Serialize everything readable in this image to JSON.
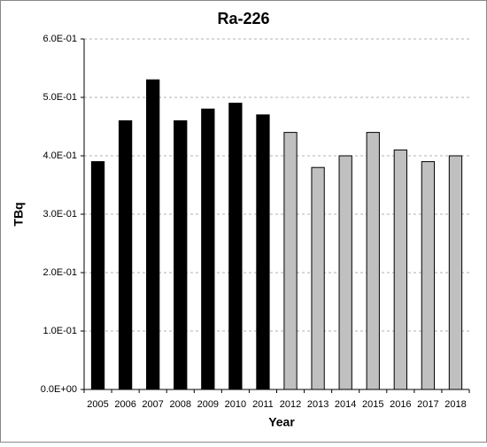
{
  "chart_data": {
    "type": "bar",
    "title": "Ra-226",
    "xlabel": "Year",
    "ylabel": "TBq",
    "categories": [
      "2005",
      "2006",
      "2007",
      "2008",
      "2009",
      "2010",
      "2011",
      "2012",
      "2013",
      "2014",
      "2015",
      "2016",
      "2017",
      "2018"
    ],
    "values": [
      0.39,
      0.46,
      0.53,
      0.46,
      0.48,
      0.49,
      0.47,
      0.44,
      0.38,
      0.4,
      0.44,
      0.41,
      0.39,
      0.4
    ],
    "colors": [
      "#000000",
      "#000000",
      "#000000",
      "#000000",
      "#000000",
      "#000000",
      "#000000",
      "#c0c0c0",
      "#c0c0c0",
      "#c0c0c0",
      "#c0c0c0",
      "#c0c0c0",
      "#c0c0c0",
      "#c0c0c0"
    ],
    "ylim": [
      0,
      0.6
    ],
    "yticks": [
      {
        "value": 0,
        "label": "0.0E+00"
      },
      {
        "value": 0.1,
        "label": "1.0E-01"
      },
      {
        "value": 0.2,
        "label": "2.0E-01"
      },
      {
        "value": 0.3,
        "label": "3.0E-01"
      },
      {
        "value": 0.4,
        "label": "4.0E-01"
      },
      {
        "value": 0.5,
        "label": "5.0E-01"
      },
      {
        "value": 0.6,
        "label": "6.0E-01"
      }
    ],
    "grid": true
  }
}
